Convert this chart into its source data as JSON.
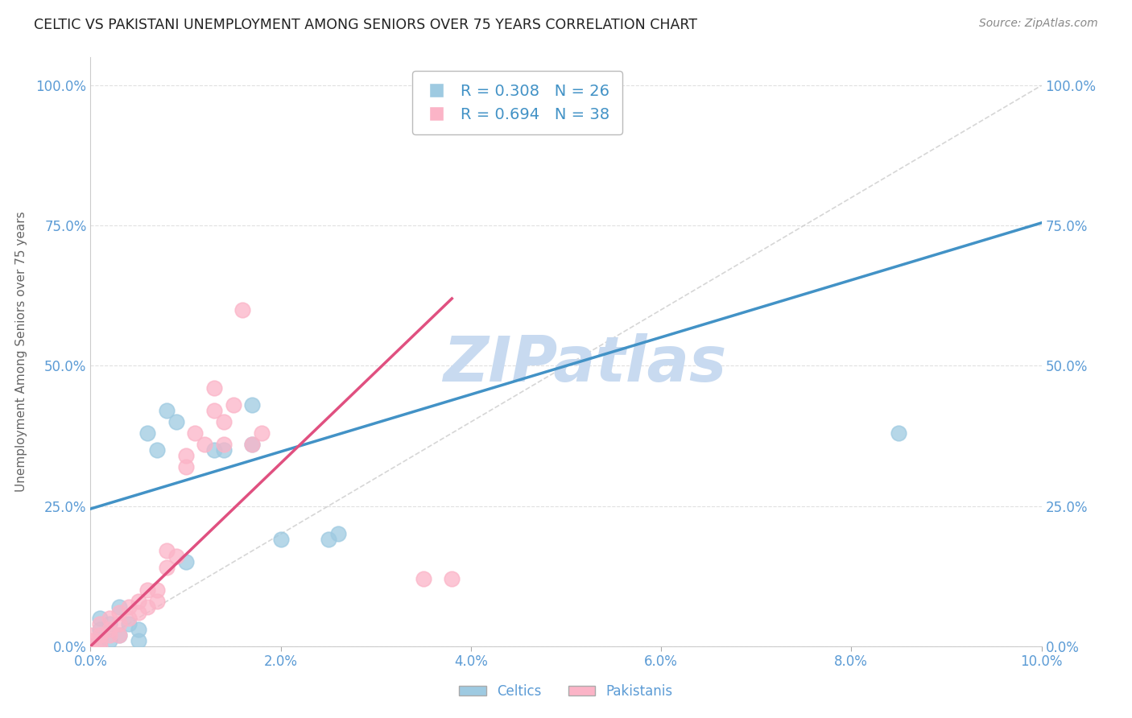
{
  "title": "CELTIC VS PAKISTANI UNEMPLOYMENT AMONG SENIORS OVER 75 YEARS CORRELATION CHART",
  "source": "Source: ZipAtlas.com",
  "ylabel_label": "Unemployment Among Seniors over 75 years",
  "ylabel_ticks": [
    "0.0%",
    "25.0%",
    "50.0%",
    "75.0%",
    "100.0%"
  ],
  "xlabel_ticks": [
    "0.0%",
    "2.0%",
    "4.0%",
    "6.0%",
    "8.0%",
    "10.0%"
  ],
  "title_color": "#222222",
  "source_color": "#888888",
  "axis_tick_color": "#5b9bd5",
  "watermark_text": "ZIPatlas",
  "watermark_color": "#c8daf0",
  "legend_R_celtic": "R = 0.308",
  "legend_N_celtic": "N = 26",
  "legend_R_pakistani": "R = 0.694",
  "legend_N_pakistani": "N = 38",
  "celtic_color": "#9ecae1",
  "pakistani_color": "#fbb4c7",
  "celtic_line_color": "#4292c6",
  "pakistani_line_color": "#e05080",
  "diagonal_color": "#cccccc",
  "grid_color": "#e0e0e0",
  "celtics_scatter_x": [
    0.0,
    0.0,
    0.0,
    0.001,
    0.001,
    0.001,
    0.002,
    0.002,
    0.003,
    0.003,
    0.004,
    0.005,
    0.005,
    0.006,
    0.007,
    0.008,
    0.009,
    0.01,
    0.013,
    0.014,
    0.017,
    0.017,
    0.02,
    0.025,
    0.026,
    0.085
  ],
  "celtics_scatter_y": [
    0.0,
    0.0,
    0.0,
    0.01,
    0.03,
    0.05,
    0.01,
    0.04,
    0.02,
    0.07,
    0.04,
    0.01,
    0.03,
    0.38,
    0.35,
    0.42,
    0.4,
    0.15,
    0.35,
    0.35,
    0.36,
    0.43,
    0.19,
    0.19,
    0.2,
    0.38
  ],
  "pakistani_scatter_x": [
    0.0,
    0.0,
    0.0,
    0.001,
    0.001,
    0.001,
    0.001,
    0.002,
    0.002,
    0.002,
    0.003,
    0.003,
    0.003,
    0.004,
    0.004,
    0.005,
    0.005,
    0.006,
    0.006,
    0.007,
    0.007,
    0.008,
    0.008,
    0.009,
    0.01,
    0.01,
    0.011,
    0.012,
    0.013,
    0.013,
    0.014,
    0.014,
    0.015,
    0.016,
    0.017,
    0.018,
    0.035,
    0.038
  ],
  "pakistani_scatter_y": [
    0.0,
    0.01,
    0.02,
    0.0,
    0.01,
    0.02,
    0.04,
    0.02,
    0.03,
    0.05,
    0.02,
    0.04,
    0.06,
    0.05,
    0.07,
    0.06,
    0.08,
    0.07,
    0.1,
    0.08,
    0.1,
    0.14,
    0.17,
    0.16,
    0.32,
    0.34,
    0.38,
    0.36,
    0.42,
    0.46,
    0.36,
    0.4,
    0.43,
    0.6,
    0.36,
    0.38,
    0.12,
    0.12
  ],
  "xlim": [
    0.0,
    0.1
  ],
  "ylim": [
    0.0,
    1.05
  ],
  "celtic_line_x": [
    0.0,
    0.1
  ],
  "celtic_line_y": [
    0.245,
    0.755
  ],
  "pakistani_line_x": [
    0.0,
    0.038
  ],
  "pakistani_line_y": [
    0.0,
    0.62
  ],
  "figsize": [
    14.06,
    8.92
  ],
  "dpi": 100
}
